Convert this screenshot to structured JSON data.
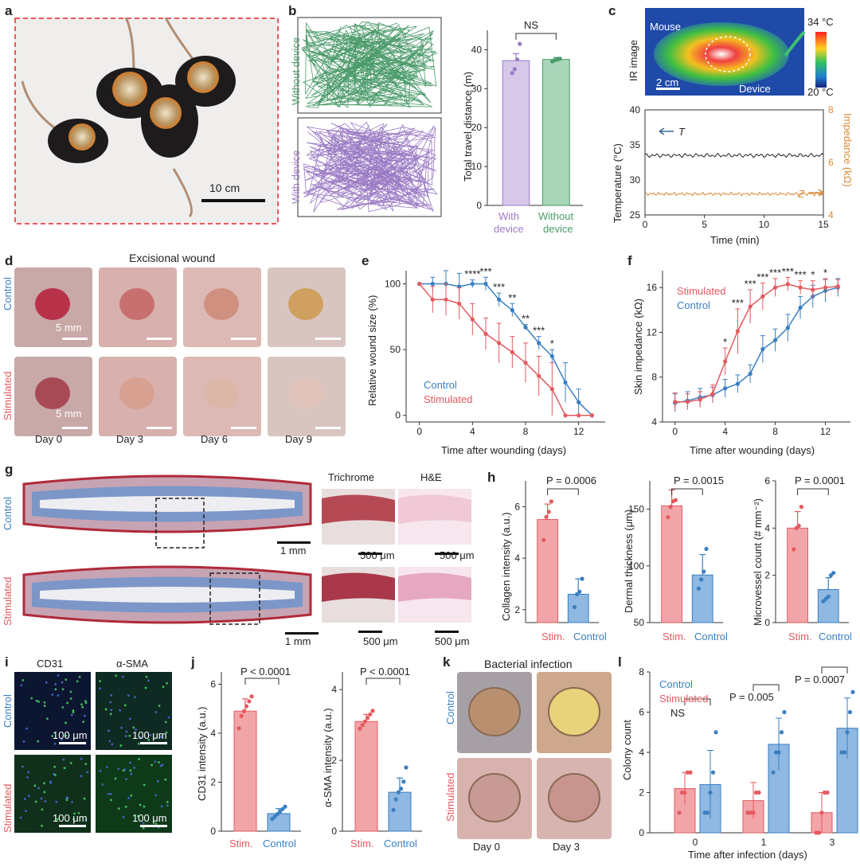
{
  "panel_labels": [
    "a",
    "b",
    "c",
    "d",
    "e",
    "f",
    "g",
    "h",
    "i",
    "j",
    "k",
    "l"
  ],
  "colors": {
    "control": "#3a7fc1",
    "stimulated": "#e35a5f",
    "purple": "#9b7bc4",
    "green": "#4a9a6a",
    "orange": "#d98b3a"
  },
  "a": {
    "scale": "10 cm"
  },
  "b": {
    "label_without": "Without device",
    "label_with": "With device",
    "ylabel": "Total travel distance (m)",
    "sig": "NS",
    "categories": [
      "With\ndevice",
      "Without\ndevice"
    ],
    "cat1a": "With",
    "cat1b": "device",
    "cat2a": "Without",
    "cat2b": "device",
    "yticks": [
      "0",
      "10",
      "20",
      "30",
      "40"
    ]
  },
  "c": {
    "ir_label": "IR image",
    "mouse": "Mouse",
    "device": "Device",
    "scale": "2 cm",
    "temp_hi": "34 °C",
    "temp_lo": "20 °C",
    "ylabel_left": "Temperature (°C)",
    "ylabel_right": "Impedance (kΩ)",
    "xlabel": "Time (min)",
    "t_label": "T",
    "z_label": "Z",
    "xticks": [
      "0",
      "5",
      "10",
      "15"
    ],
    "yticks_left": [
      "25",
      "30",
      "35",
      "40"
    ],
    "yticks_right": [
      "4",
      "6",
      "8"
    ]
  },
  "d": {
    "title": "Excisional wound",
    "row_control": "Control",
    "row_stim": "Stimulated",
    "scale": "5 mm",
    "days": [
      "Day 0",
      "Day 3",
      "Day 6",
      "Day 9"
    ]
  },
  "e": {
    "ylabel": "Relative wound size (%)",
    "xlabel": "Time after wounding (days)",
    "legend_control": "Control",
    "legend_stim": "Stimulated"
  },
  "f": {
    "ylabel": "Skin impedance (kΩ)",
    "xlabel": "Time after wounding (days)",
    "legend_control": "Control",
    "legend_stim": "Stimulated"
  },
  "g": {
    "row_control": "Control",
    "row_stim": "Stimulated",
    "trichrome": "Trichrome",
    "he": "H&E",
    "scale_mm": "1 mm",
    "scale_um": "500 μm"
  },
  "h": {
    "plots": [
      {
        "ylabel": "Collagen intensity (a.u.)",
        "p": "P = 0.0006",
        "yticks": [
          "2",
          "4",
          "6"
        ]
      },
      {
        "ylabel": "Dermal thickness (μm)",
        "p": "P = 0.0015",
        "yticks": [
          "50",
          "100",
          "150"
        ]
      },
      {
        "ylabel": "Microvessel count (# mm⁻²)",
        "p": "P = 0.0001",
        "yticks": [
          "0",
          "2",
          "4",
          "6"
        ]
      }
    ],
    "cat_stim": "Stim.",
    "cat_control": "Control"
  },
  "i": {
    "col1": "CD31",
    "col2": "α-SMA",
    "row_control": "Control",
    "row_stim": "Stimulated",
    "scale": "100 μm"
  },
  "j": {
    "plots": [
      {
        "ylabel": "CD31 intensity (a.u.)",
        "p": "P < 0.0001",
        "yticks": [
          "0",
          "2",
          "4",
          "6"
        ]
      },
      {
        "ylabel": "α-SMA intensity (a.u.)",
        "p": "P < 0.0001",
        "yticks": [
          "0",
          "2",
          "4"
        ]
      }
    ],
    "cat_stim": "Stim.",
    "cat_control": "Control"
  },
  "k": {
    "title": "Bacterial infection",
    "row_control": "Control",
    "row_stim": "Stimulated",
    "days": [
      "Day 0",
      "Day 3"
    ]
  },
  "l": {
    "ylabel": "Colony count",
    "xlabel": "Time after infection (days)",
    "legend_control": "Control",
    "legend_stim": "Stimulated",
    "sig": [
      "NS",
      "P = 0.005",
      "P = 0.0007"
    ]
  },
  "chart_data": [
    {
      "id": "b",
      "type": "bar",
      "categories": [
        "With device",
        "Without device"
      ],
      "values": [
        37.2,
        37.5
      ],
      "errors": [
        1.8,
        0.5
      ],
      "points": [
        [
          34,
          35,
          37.5,
          41.5
        ],
        [
          37,
          37.3,
          37.5,
          37.7
        ]
      ],
      "ylim": [
        0,
        45
      ]
    },
    {
      "id": "c",
      "type": "line",
      "series": [
        {
          "name": "T",
          "axis": "left",
          "x_range": [
            0,
            15
          ],
          "mean": 33.5
        },
        {
          "name": "Z",
          "axis": "right",
          "x_range": [
            0,
            15
          ],
          "mean": 4.8
        }
      ],
      "ylim_left": [
        25,
        40
      ],
      "ylim_right": [
        4,
        8
      ],
      "xlim": [
        0,
        15
      ]
    },
    {
      "id": "e",
      "type": "line",
      "x": [
        0,
        1,
        2,
        3,
        4,
        5,
        6,
        7,
        8,
        9,
        10,
        11,
        12,
        13
      ],
      "series": [
        {
          "name": "Control",
          "values": [
            100,
            100,
            100,
            98,
            100,
            100,
            88,
            80,
            67,
            55,
            45,
            25,
            10,
            0
          ],
          "errors": [
            0,
            5,
            10,
            10,
            3,
            5,
            5,
            5,
            2,
            5,
            5,
            15,
            10,
            0
          ]
        },
        {
          "name": "Stimulated",
          "values": [
            100,
            88,
            88,
            85,
            73,
            62,
            55,
            48,
            40,
            30,
            20,
            0,
            0,
            0
          ],
          "errors": [
            0,
            10,
            12,
            12,
            12,
            12,
            15,
            12,
            15,
            15,
            20,
            0,
            0,
            0
          ]
        }
      ],
      "xlim": [
        -1,
        14
      ],
      "ylim": [
        -5,
        110
      ],
      "xticks": [
        0,
        4,
        8,
        12
      ],
      "yticks": [
        0,
        50,
        100
      ],
      "stars": [
        {
          "x": 4,
          "label": "****"
        },
        {
          "x": 5,
          "label": "***"
        },
        {
          "x": 6,
          "label": "***"
        },
        {
          "x": 7,
          "label": "**"
        },
        {
          "x": 8,
          "label": "**"
        },
        {
          "x": 9,
          "label": "***"
        },
        {
          "x": 10,
          "label": "*"
        }
      ]
    },
    {
      "id": "f",
      "type": "line",
      "x": [
        0,
        1,
        2,
        3,
        4,
        5,
        6,
        7,
        8,
        9,
        10,
        11,
        12,
        13
      ],
      "series": [
        {
          "name": "Control",
          "values": [
            5.7,
            5.9,
            6.2,
            6.4,
            7.0,
            7.4,
            8.3,
            10.5,
            11.3,
            12.4,
            14.2,
            15.2,
            15.7,
            16.0
          ],
          "errors": [
            0.8,
            0.8,
            0.8,
            0.7,
            0.8,
            0.8,
            0.8,
            1.2,
            1.0,
            1.2,
            1.0,
            1.0,
            1.0,
            0.8
          ]
        },
        {
          "name": "Stimulated",
          "values": [
            5.8,
            5.8,
            6.0,
            6.5,
            9.4,
            12.1,
            14.3,
            15.2,
            16.0,
            16.3,
            16.0,
            15.8,
            16.0,
            16.1
          ],
          "errors": [
            0.8,
            0.7,
            0.7,
            0.8,
            1.2,
            2.0,
            1.5,
            1.2,
            0.8,
            0.6,
            0.6,
            0.8,
            0.8,
            0.6
          ]
        }
      ],
      "xlim": [
        -1,
        14
      ],
      "ylim": [
        4,
        17.5
      ],
      "xticks": [
        0,
        4,
        8,
        12
      ],
      "yticks": [
        4,
        8,
        12,
        16
      ],
      "stars": [
        {
          "x": 4,
          "label": "*"
        },
        {
          "x": 5,
          "label": "***"
        },
        {
          "x": 6,
          "label": "***"
        },
        {
          "x": 7,
          "label": "***"
        },
        {
          "x": 8,
          "label": "***"
        },
        {
          "x": 9,
          "label": "***"
        },
        {
          "x": 10,
          "label": "***"
        },
        {
          "x": 11,
          "label": "*"
        },
        {
          "x": 12,
          "label": "*"
        }
      ]
    },
    {
      "id": "h1",
      "type": "bar",
      "categories": [
        "Stim.",
        "Control"
      ],
      "values": [
        5.5,
        2.6
      ],
      "errors": [
        0.6,
        0.6
      ],
      "points": [
        [
          4.7,
          5.6,
          5.8,
          6.2
        ],
        [
          2.1,
          2.6,
          2.7,
          3.2
        ]
      ],
      "ylim": [
        1.5,
        7
      ]
    },
    {
      "id": "h2",
      "type": "bar",
      "categories": [
        "Stim.",
        "Control"
      ],
      "values": [
        153,
        92
      ],
      "errors": [
        14,
        18
      ],
      "points": [
        [
          143,
          152,
          157,
          158
        ],
        [
          80,
          88,
          95,
          115
        ]
      ],
      "ylim": [
        50,
        175
      ]
    },
    {
      "id": "h3",
      "type": "bar",
      "categories": [
        "Stim.",
        "Control"
      ],
      "values": [
        4.0,
        1.4
      ],
      "errors": [
        0.7,
        0.5
      ],
      "points": [
        [
          3.1,
          4.0,
          4.1,
          4.9
        ],
        [
          0.9,
          1.0,
          1.1,
          2.0,
          2.1
        ]
      ],
      "ylim": [
        0,
        6
      ]
    },
    {
      "id": "j1",
      "type": "bar",
      "categories": [
        "Stim.",
        "Control"
      ],
      "values": [
        4.9,
        0.72
      ],
      "errors": [
        0.5,
        0.2
      ],
      "points": [
        [
          4.2,
          4.7,
          4.9,
          5.1,
          5.3,
          5.5
        ],
        [
          0.5,
          0.6,
          0.7,
          0.8,
          0.9,
          1.0
        ]
      ],
      "ylim": [
        0,
        6.5
      ]
    },
    {
      "id": "j2",
      "type": "bar",
      "categories": [
        "Stim.",
        "Control"
      ],
      "values": [
        3.1,
        1.1
      ],
      "errors": [
        0.2,
        0.4
      ],
      "points": [
        [
          2.9,
          3.0,
          3.1,
          3.2,
          3.3,
          3.4
        ],
        [
          0.6,
          0.9,
          1.1,
          1.2,
          1.4,
          1.8
        ]
      ],
      "ylim": [
        0,
        4.5
      ]
    },
    {
      "id": "l",
      "type": "bar",
      "categories": [
        "0",
        "1",
        "3"
      ],
      "series": [
        {
          "name": "Stimulated",
          "values": [
            2.2,
            1.6,
            1.0
          ],
          "errors": [
            0.8,
            0.9,
            1.0
          ],
          "points": [
            [
              1,
              2,
              2,
              3,
              3
            ],
            [
              1,
              1,
              1,
              2,
              2
            ],
            [
              0,
              0,
              1,
              2,
              2
            ]
          ]
        },
        {
          "name": "Control",
          "values": [
            2.4,
            4.4,
            5.2
          ],
          "errors": [
            1.7,
            1.3,
            1.5
          ],
          "points": [
            [
              1,
              1,
              2,
              3,
              5
            ],
            [
              3,
              4,
              4,
              5,
              6
            ],
            [
              4,
              4,
              5,
              6,
              7
            ]
          ]
        }
      ],
      "ylim": [
        0,
        8
      ],
      "yticks": [
        0,
        2,
        4,
        6,
        8
      ]
    }
  ]
}
